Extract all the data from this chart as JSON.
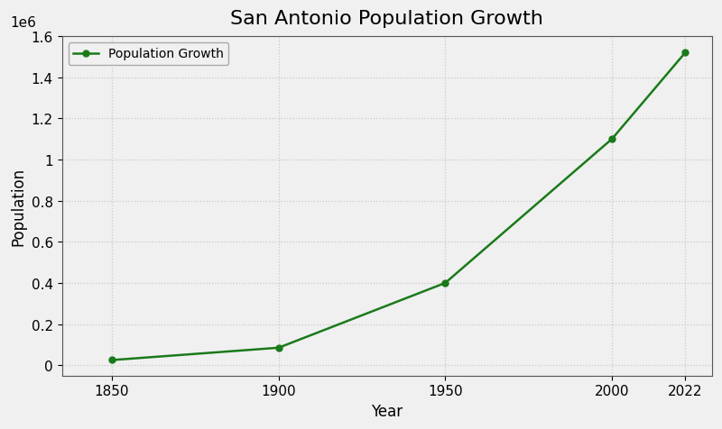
{
  "title": "San Antonio Population Growth",
  "xlabel": "Year",
  "ylabel": "Population",
  "years": [
    1850,
    1900,
    1950,
    2000,
    2022
  ],
  "population": [
    25000,
    85000,
    400000,
    1100000,
    1520000
  ],
  "line_color": "#1a7a1a",
  "marker": "o",
  "marker_color": "#1a7a1a",
  "legend_label": "Population Growth",
  "ylim": [
    -50000,
    1600000
  ],
  "xlim": [
    1835,
    2030
  ],
  "background_color": "#f0f0f0",
  "plot_background_color": "#f0f0f0",
  "grid_color": "#c8c8c8",
  "title_fontsize": 16,
  "label_fontsize": 12,
  "tick_fontsize": 11,
  "legend_fontsize": 10,
  "linewidth": 1.8,
  "markersize": 5
}
